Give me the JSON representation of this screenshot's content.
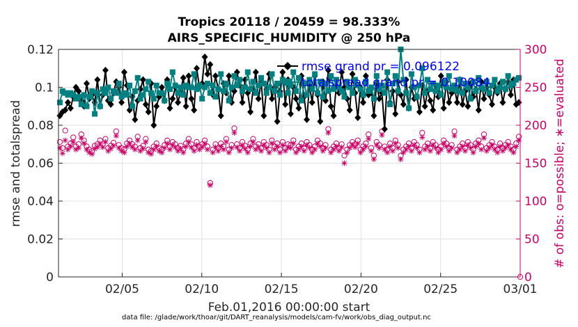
{
  "chart_data": {
    "type": "line",
    "title_line1": "Tropics 20118 / 20459 = 98.333%",
    "title_line2": "AIRS_SPECIFIC_HUMIDITY @ 250 hPa",
    "xlabel": "Feb.01,2016 00:00:00 start",
    "ylabel_left": "rmse and totalspread",
    "ylabel_right": "# of obs: o=possible; ∗=evaluated",
    "footer": "data file: /glade/work/thoar/git/DART_reanalysis/models/cam-fv/work/obs_diag_output.nc",
    "xlim": [
      1,
      30
    ],
    "ylim_left": [
      0,
      0.12
    ],
    "ylim_right": [
      0,
      300
    ],
    "x_ticks": [
      5,
      10,
      15,
      20,
      25,
      30
    ],
    "x_tick_labels": [
      "02/05",
      "02/10",
      "02/15",
      "02/20",
      "02/25",
      "03/01"
    ],
    "y_left_ticks": [
      0,
      0.02,
      0.04,
      0.06,
      0.08,
      0.1,
      0.12
    ],
    "y_left_tick_labels": [
      "0",
      "0.02",
      "0.04",
      "0.06",
      "0.08",
      "0.1",
      "0.12"
    ],
    "y_right_ticks": [
      0,
      50,
      100,
      150,
      200,
      250,
      300
    ],
    "y_right_tick_labels": [
      "0",
      "50",
      "100",
      "150",
      "200",
      "250",
      "300"
    ],
    "grid": true,
    "legend_position": "top-right",
    "series": [
      {
        "name": "rmse grand pr = 0.096122",
        "axis": "left",
        "color": "#000000",
        "marker": "diamond",
        "values": [
          0.085,
          0.087,
          0.088,
          0.092,
          0.089,
          0.095,
          0.1,
          0.098,
          0.093,
          0.09,
          0.102,
          0.094,
          0.096,
          0.092,
          0.104,
          0.09,
          0.096,
          0.109,
          0.093,
          0.091,
          0.097,
          0.103,
          0.1,
          0.092,
          0.108,
          0.101,
          0.088,
          0.095,
          0.083,
          0.093,
          0.099,
          0.104,
          0.091,
          0.087,
          0.102,
          0.08,
          0.09,
          0.095,
          0.1,
          0.093,
          0.104,
          0.089,
          0.094,
          0.1,
          0.092,
          0.098,
          0.105,
          0.09,
          0.106,
          0.094,
          0.088,
          0.11,
          0.1,
          0.102,
          0.116,
          0.107,
          0.112,
          0.096,
          0.106,
          0.099,
          0.085,
          0.102,
          0.097,
          0.106,
          0.092,
          0.098,
          0.108,
          0.101,
          0.092,
          0.104,
          0.097,
          0.087,
          0.099,
          0.108,
          0.094,
          0.103,
          0.085,
          0.099,
          0.107,
          0.094,
          0.1,
          0.082,
          0.098,
          0.108,
          0.091,
          0.104,
          0.086,
          0.1,
          0.094,
          0.089,
          0.106,
          0.095,
          0.083,
          0.101,
          0.092,
          0.106,
          0.096,
          0.082,
          0.103,
          0.093,
          0.109,
          0.09,
          0.085,
          0.101,
          0.097,
          0.108,
          0.1,
          0.094,
          0.088,
          0.107,
          0.097,
          0.084,
          0.1,
          0.092,
          0.106,
          0.096,
          0.099,
          0.085,
          0.102,
          0.094,
          0.097,
          0.078,
          0.104,
          0.092,
          0.098,
          0.086,
          0.103,
          0.096,
          0.091,
          0.104,
          0.089,
          0.1,
          0.094,
          0.095,
          0.087,
          0.101,
          0.09,
          0.098,
          0.093,
          0.088,
          0.101,
          0.095,
          0.106,
          0.089,
          0.103,
          0.092,
          0.097,
          0.1,
          0.092,
          0.104,
          0.091,
          0.098,
          0.09,
          0.102,
          0.095,
          0.099,
          0.088,
          0.103,
          0.094,
          0.1,
          0.096,
          0.091,
          0.1,
          0.097,
          0.102,
          0.092,
          0.099,
          0.103,
          0.096,
          0.104,
          0.091,
          0.092
        ]
      },
      {
        "name": "totalspread grand pr = 0.10084",
        "axis": "left",
        "color": "#008080",
        "marker": "square",
        "values": [
          0.092,
          0.098,
          0.097,
          0.096,
          0.097,
          0.096,
          0.094,
          0.095,
          0.091,
          0.096,
          0.09,
          0.095,
          0.098,
          0.086,
          0.097,
          0.09,
          0.099,
          0.097,
          0.1,
          0.094,
          0.098,
          0.097,
          0.102,
          0.095,
          0.097,
          0.096,
          0.101,
          0.09,
          0.098,
          0.105,
          0.094,
          0.096,
          0.099,
          0.103,
          0.097,
          0.094,
          0.101,
          0.097,
          0.097,
          0.093,
          0.102,
          0.099,
          0.108,
          0.101,
          0.097,
          0.1,
          0.096,
          0.101,
          0.1,
          0.1,
          0.107,
          0.099,
          0.101,
          0.094,
          0.1,
          0.102,
          0.097,
          0.101,
          0.095,
          0.099,
          0.107,
          0.098,
          0.102,
          0.093,
          0.1,
          0.106,
          0.101,
          0.104,
          0.098,
          0.1,
          0.108,
          0.099,
          0.103,
          0.097,
          0.101,
          0.105,
          0.102,
          0.097,
          0.1,
          0.107,
          0.098,
          0.102,
          0.096,
          0.104,
          0.103,
          0.097,
          0.101,
          0.108,
          0.098,
          0.105,
          0.093,
          0.102,
          0.096,
          0.104,
          0.099,
          0.107,
          0.097,
          0.103,
          0.095,
          0.102,
          0.098,
          0.106,
          0.099,
          0.104,
          0.1,
          0.098,
          0.095,
          0.103,
          0.1,
          0.097,
          0.104,
          0.101,
          0.099,
          0.096,
          0.103,
          0.098,
          0.1,
          0.094,
          0.106,
          0.099,
          0.101,
          0.097,
          0.108,
          0.091,
          0.102,
          0.106,
          0.098,
          0.12,
          0.104,
          0.097,
          0.089,
          0.107,
          0.1,
          0.095,
          0.101,
          0.11,
          0.097,
          0.104,
          0.099,
          0.102,
          0.098,
          0.101,
          0.096,
          0.103,
          0.1,
          0.106,
          0.099,
          0.101,
          0.098,
          0.104,
          0.097,
          0.102,
          0.1,
          0.094,
          0.103,
          0.098,
          0.105,
          0.1,
          0.099,
          0.103,
          0.097,
          0.101,
          0.104,
          0.098,
          0.1,
          0.103,
          0.099,
          0.106,
          0.101,
          0.102,
          0.104,
          0.105
        ]
      },
      {
        "name": "obs possible",
        "axis": "right",
        "color": "#cc0066",
        "marker": "circle",
        "values": [
          178,
          170,
          193,
          172,
          176,
          184,
          172,
          175,
          188,
          180,
          172,
          168,
          166,
          173,
          175,
          180,
          175,
          182,
          170,
          173,
          177,
          192,
          174,
          170,
          168,
          176,
          180,
          175,
          172,
          185,
          170,
          173,
          182,
          168,
          166,
          172,
          176,
          170,
          168,
          174,
          180,
          172,
          178,
          175,
          170,
          173,
          168,
          176,
          182,
          175,
          170,
          178,
          172,
          175,
          180,
          172,
          124,
          168,
          175,
          170,
          176,
          172,
          182,
          168,
          174,
          196,
          175,
          170,
          178,
          173,
          168,
          176,
          182,
          172,
          175,
          170,
          178,
          174,
          168,
          180,
          172,
          176,
          168,
          178,
          170,
          175,
          174,
          180,
          168,
          172,
          176,
          170,
          178,
          174,
          168,
          172,
          180,
          176,
          170,
          174,
          195,
          168,
          172,
          176,
          170,
          175,
          160,
          168,
          174,
          178,
          175,
          180,
          168,
          172,
          176,
          188,
          170,
          160,
          178,
          174,
          192,
          172,
          168,
          176,
          170,
          180,
          174,
          160,
          168,
          172,
          176,
          170,
          178,
          174,
          168,
          190,
          172,
          176,
          170,
          178,
          174,
          168,
          172,
          180,
          176,
          170,
          174,
          192,
          168,
          172,
          176,
          170,
          178,
          174,
          168,
          176,
          180,
          172,
          188,
          170,
          174,
          178,
          172,
          168,
          176,
          170,
          174,
          178,
          172,
          168,
          176,
          185
        ]
      },
      {
        "name": "obs evaluated",
        "axis": "right",
        "color": "#cc0066",
        "marker": "asterisk",
        "values": [
          170,
          163,
          180,
          168,
          172,
          178,
          168,
          170,
          183,
          176,
          168,
          164,
          162,
          169,
          171,
          176,
          171,
          178,
          166,
          169,
          173,
          186,
          170,
          166,
          164,
          172,
          176,
          171,
          168,
          180,
          166,
          169,
          178,
          164,
          162,
          168,
          172,
          166,
          164,
          170,
          176,
          168,
          174,
          171,
          166,
          169,
          164,
          172,
          178,
          171,
          166,
          174,
          168,
          171,
          176,
          168,
          121,
          164,
          171,
          166,
          172,
          168,
          178,
          164,
          170,
          190,
          171,
          166,
          174,
          169,
          164,
          172,
          178,
          168,
          171,
          166,
          174,
          170,
          164,
          176,
          168,
          172,
          164,
          174,
          166,
          171,
          170,
          176,
          164,
          168,
          172,
          166,
          174,
          170,
          164,
          168,
          176,
          172,
          166,
          170,
          190,
          164,
          168,
          172,
          166,
          171,
          150,
          164,
          170,
          174,
          171,
          176,
          164,
          168,
          172,
          182,
          166,
          155,
          174,
          170,
          187,
          168,
          164,
          172,
          166,
          176,
          170,
          155,
          164,
          168,
          172,
          166,
          174,
          170,
          164,
          184,
          168,
          172,
          166,
          174,
          170,
          164,
          168,
          176,
          172,
          166,
          170,
          186,
          164,
          168,
          172,
          166,
          174,
          170,
          164,
          172,
          176,
          168,
          183,
          166,
          170,
          174,
          168,
          164,
          172,
          166,
          170,
          174,
          168,
          164,
          172,
          180
        ]
      }
    ]
  }
}
